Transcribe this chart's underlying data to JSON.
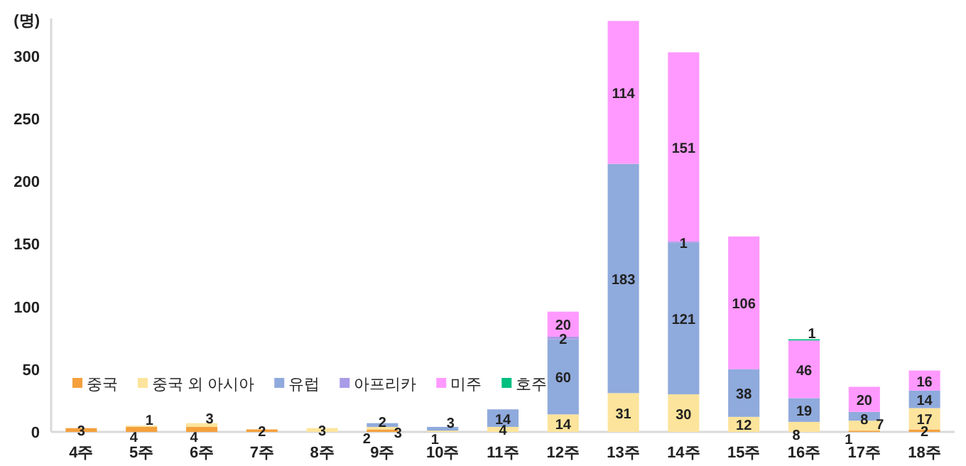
{
  "chart_data": {
    "type": "bar",
    "stacked": true,
    "ylabel": "(명)",
    "categories": [
      "4주",
      "5주",
      "6주",
      "7주",
      "8주",
      "9주",
      "10주",
      "11주",
      "12주",
      "13주",
      "14주",
      "15주",
      "16주",
      "17주",
      "18주"
    ],
    "series": [
      {
        "name": "중국",
        "color": "#f4a03c",
        "values": [
          3,
          4,
          4,
          2,
          null,
          2,
          null,
          null,
          null,
          null,
          null,
          null,
          null,
          1,
          2
        ]
      },
      {
        "name": "중국 외 아시아",
        "color": "#fde49c",
        "values": [
          null,
          1,
          3,
          null,
          3,
          2,
          1,
          4,
          14,
          31,
          30,
          12,
          8,
          8,
          17
        ]
      },
      {
        "name": "유럽",
        "color": "#8faadc",
        "values": [
          null,
          null,
          null,
          null,
          null,
          3,
          3,
          14,
          60,
          183,
          121,
          38,
          19,
          7,
          14
        ]
      },
      {
        "name": "아프리카",
        "color": "#a99be6",
        "values": [
          null,
          null,
          null,
          null,
          null,
          null,
          null,
          null,
          2,
          null,
          1,
          null,
          null,
          null,
          null
        ]
      },
      {
        "name": "미주",
        "color": "#ff99ff",
        "values": [
          null,
          null,
          null,
          null,
          null,
          null,
          null,
          null,
          20,
          114,
          151,
          106,
          46,
          20,
          16
        ]
      },
      {
        "name": "호주",
        "color": "#00c07f",
        "values": [
          null,
          null,
          null,
          null,
          null,
          null,
          null,
          null,
          null,
          null,
          null,
          null,
          1,
          null,
          null
        ]
      }
    ],
    "ylim": [
      0,
      330
    ],
    "yticks": [
      0,
      50,
      100,
      150,
      200,
      250,
      300
    ],
    "data_labels": true,
    "legend": "bottom left",
    "grid": false
  }
}
